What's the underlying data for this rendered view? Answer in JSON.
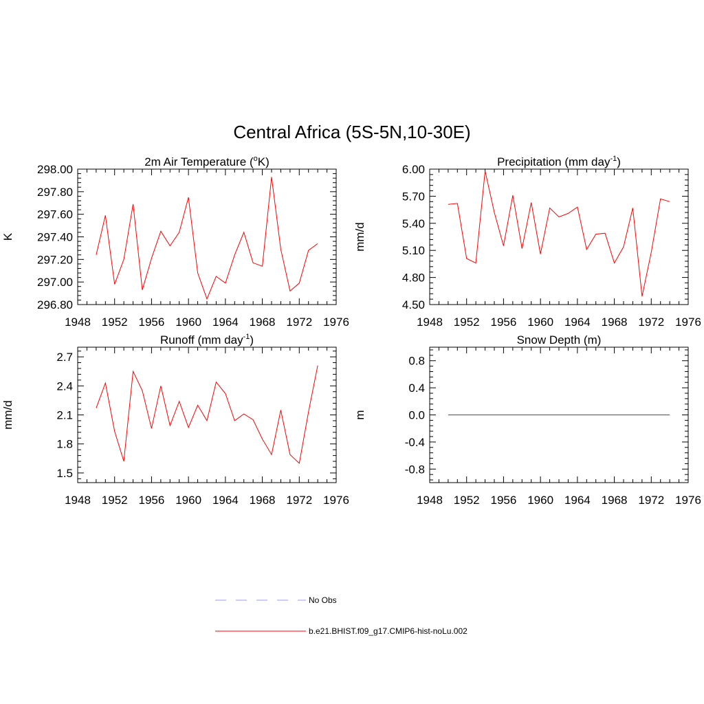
{
  "figure": {
    "title": "Central Africa (5S-5N,10-30E)"
  },
  "chart_data": [
    {
      "type": "line",
      "title_parts": [
        "2m Air Temperature (",
        "o",
        "K)"
      ],
      "ylabel": "K",
      "xlim": [
        1948,
        1976
      ],
      "xticks": [
        1948,
        1952,
        1956,
        1960,
        1964,
        1968,
        1972,
        1976
      ],
      "ylim": [
        296.8,
        298.0
      ],
      "yticks": [
        296.8,
        297.0,
        297.2,
        297.4,
        297.6,
        297.8,
        298.0
      ],
      "ytick_decimals": 2,
      "grid": false,
      "series": [
        {
          "name": "b.e21.BHIST.f09_g17.CMIP6-hist-noLu.002",
          "color": "#ff0000",
          "x": [
            1950,
            1951,
            1952,
            1953,
            1954,
            1955,
            1956,
            1957,
            1958,
            1959,
            1960,
            1961,
            1962,
            1963,
            1964,
            1965,
            1966,
            1967,
            1968,
            1969,
            1970,
            1971,
            1972,
            1973,
            1974
          ],
          "y": [
            297.24,
            297.59,
            296.98,
            297.2,
            297.69,
            296.93,
            297.21,
            297.45,
            297.32,
            297.44,
            297.75,
            297.08,
            296.85,
            297.05,
            296.99,
            297.24,
            297.44,
            297.17,
            297.14,
            297.93,
            297.29,
            296.92,
            296.99,
            297.28,
            297.34
          ]
        }
      ]
    },
    {
      "type": "line",
      "title_parts": [
        "Precipitation (mm day",
        "-1",
        ")"
      ],
      "ylabel": "mm/d",
      "xlim": [
        1948,
        1976
      ],
      "xticks": [
        1948,
        1952,
        1956,
        1960,
        1964,
        1968,
        1972,
        1976
      ],
      "ylim": [
        4.5,
        6.0
      ],
      "yticks": [
        4.5,
        4.8,
        5.1,
        5.4,
        5.7,
        6.0
      ],
      "ytick_decimals": 2,
      "grid": false,
      "series": [
        {
          "name": "b.e21.BHIST.f09_g17.CMIP6-hist-noLu.002",
          "color": "#ff0000",
          "x": [
            1950,
            1951,
            1952,
            1953,
            1954,
            1955,
            1956,
            1957,
            1958,
            1959,
            1960,
            1961,
            1962,
            1963,
            1964,
            1965,
            1966,
            1967,
            1968,
            1969,
            1970,
            1971,
            1972,
            1973,
            1974
          ],
          "y": [
            5.61,
            5.62,
            5.01,
            4.96,
            5.98,
            5.52,
            5.15,
            5.71,
            5.12,
            5.63,
            5.06,
            5.57,
            5.47,
            5.51,
            5.58,
            5.11,
            5.28,
            5.29,
            4.96,
            5.14,
            5.57,
            4.59,
            5.08,
            5.67,
            5.64
          ]
        }
      ]
    },
    {
      "type": "line",
      "title_parts": [
        "Runoff (mm day",
        "-1",
        ")"
      ],
      "ylabel": "mm/d",
      "xlim": [
        1948,
        1976
      ],
      "xticks": [
        1948,
        1952,
        1956,
        1960,
        1964,
        1968,
        1972,
        1976
      ],
      "ylim": [
        1.4,
        2.8
      ],
      "yticks": [
        1.5,
        1.8,
        2.1,
        2.4,
        2.7
      ],
      "ytick_decimals": 1,
      "grid": false,
      "series": [
        {
          "name": "b.e21.BHIST.f09_g17.CMIP6-hist-noLu.002",
          "color": "#ff0000",
          "x": [
            1950,
            1951,
            1952,
            1953,
            1954,
            1955,
            1956,
            1957,
            1958,
            1959,
            1960,
            1961,
            1962,
            1963,
            1964,
            1965,
            1966,
            1967,
            1968,
            1969,
            1970,
            1971,
            1972,
            1973,
            1974
          ],
          "y": [
            2.17,
            2.43,
            1.93,
            1.62,
            2.55,
            2.35,
            1.96,
            2.4,
            1.99,
            2.24,
            1.97,
            2.2,
            2.04,
            2.44,
            2.32,
            2.04,
            2.11,
            2.05,
            1.85,
            1.69,
            2.15,
            1.69,
            1.6,
            2.13,
            2.61
          ]
        }
      ]
    },
    {
      "type": "line",
      "title_parts": [
        "Snow Depth (m)"
      ],
      "ylabel": "m",
      "xlim": [
        1948,
        1976
      ],
      "xticks": [
        1948,
        1952,
        1956,
        1960,
        1964,
        1968,
        1972,
        1976
      ],
      "ylim": [
        -1.0,
        1.0
      ],
      "yticks": [
        -0.8,
        -0.4,
        0.0,
        0.4,
        0.8
      ],
      "ytick_decimals": 1,
      "grid": false,
      "series": [
        {
          "name": "b.e21.BHIST.f09_g17.CMIP6-hist-noLu.002",
          "color": "#ff0000",
          "x": [
            1950,
            1974
          ],
          "y": [
            0.0,
            0.0
          ]
        }
      ]
    }
  ],
  "legend": {
    "items": [
      {
        "label": "No Obs",
        "color": "#9a9af0",
        "style": "dashed"
      },
      {
        "label": "b.e21.BHIST.f09_g17.CMIP6-hist-noLu.002",
        "color": "#ff0000",
        "style": "solid"
      }
    ]
  }
}
